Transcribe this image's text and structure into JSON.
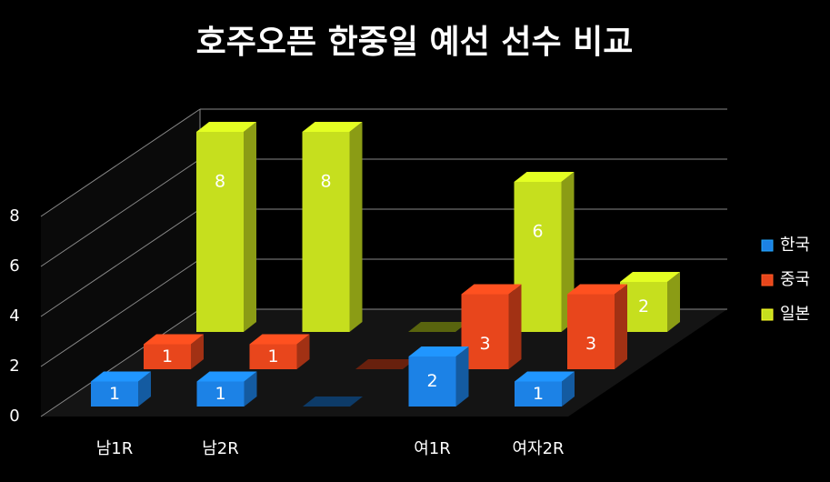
{
  "chart_data": {
    "type": "bar3d",
    "title": "호주오픈 한중일 예선 선수 비교",
    "categories": [
      "남1R",
      "남2R",
      null,
      "여1R",
      "여자2R"
    ],
    "series": [
      {
        "name": "한국",
        "color": "#1c82e6",
        "values": [
          1,
          1,
          0,
          2,
          1
        ]
      },
      {
        "name": "중국",
        "color": "#e8461c",
        "values": [
          1,
          1,
          0,
          3,
          3
        ]
      },
      {
        "name": "일본",
        "color": "#c6df1e",
        "values": [
          8,
          8,
          0,
          6,
          2
        ]
      }
    ],
    "ylim": [
      0,
      8
    ],
    "yticks": [
      0,
      2,
      4,
      6,
      8
    ],
    "grid": true,
    "legend": "right"
  }
}
